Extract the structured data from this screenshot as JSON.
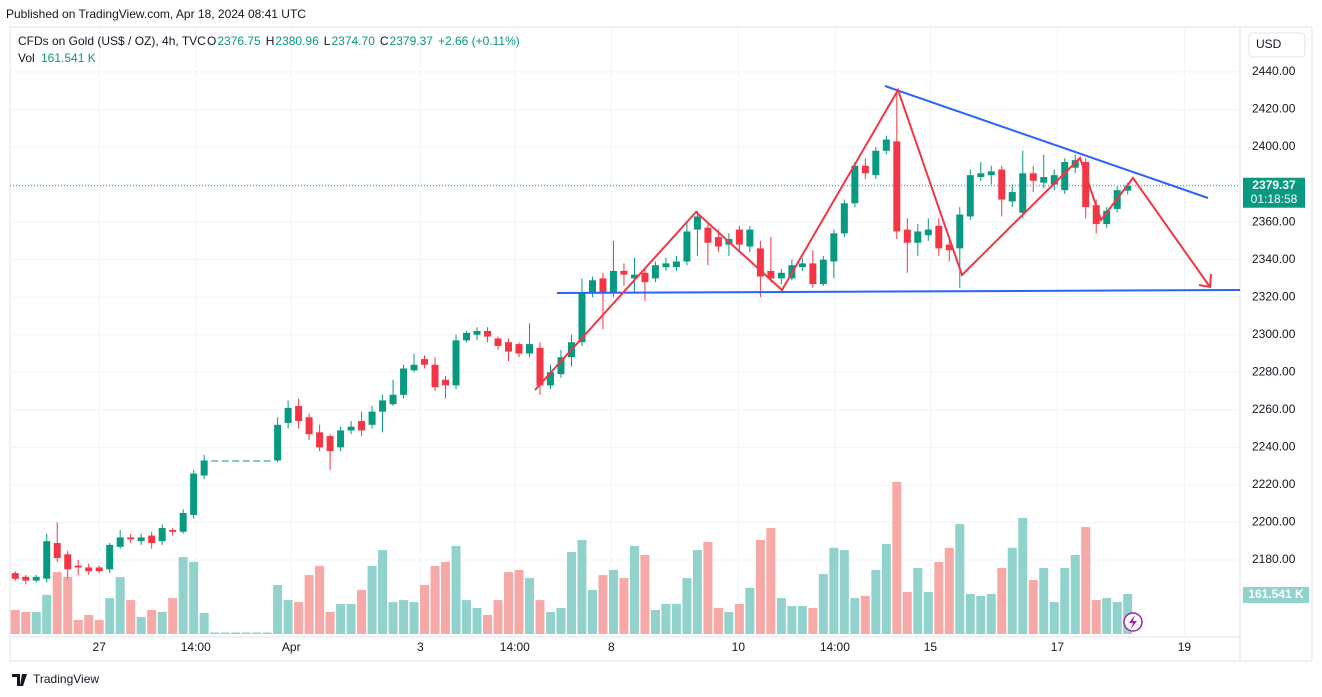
{
  "published": "Published on TradingView.com, Apr 18, 2024 08:41 UTC",
  "footer": "TradingView",
  "chart_data": {
    "type": "candlestick",
    "legend": {
      "title": "CFDs on Gold (US$ / OZ), 4h, TVC",
      "fields": [
        {
          "key": "O",
          "text": "2376.75"
        },
        {
          "key": "H",
          "text": "2380.96"
        },
        {
          "key": "L",
          "text": "2374.70"
        },
        {
          "key": "C",
          "text": "2379.37"
        }
      ],
      "change": "+2.66 (+0.11%)",
      "vol_label": "Vol"
    },
    "currency": "USD",
    "countdown": "01:18:58",
    "up_color": "#089981",
    "down_color": "#f23645",
    "volume_up_color": "#92d2cc",
    "volume_down_color": "#f7a9a7",
    "grid": true,
    "xlim": [
      -0.5,
      116.7
    ],
    "xticks": [
      {
        "value": 8,
        "label": "27"
      },
      {
        "value": 17.2,
        "label": "14:00"
      },
      {
        "value": 26.3,
        "label": "Apr"
      },
      {
        "value": 38.6,
        "label": "3"
      },
      {
        "value": 47.6,
        "label": "14:00"
      },
      {
        "value": 56.8,
        "label": "8"
      },
      {
        "value": 68.9,
        "label": "10"
      },
      {
        "value": 78.1,
        "label": "14:00"
      },
      {
        "value": 87.2,
        "label": "15"
      },
      {
        "value": 99.3,
        "label": "17"
      },
      {
        "value": 111.4,
        "label": "19"
      }
    ],
    "ylim": [
      2126.7,
      2463.4
    ],
    "yticks": [
      {
        "value": 2180,
        "label": "2180.00"
      },
      {
        "value": 2200,
        "label": "2200.00"
      },
      {
        "value": 2220,
        "label": "2220.00"
      },
      {
        "value": 2240,
        "label": "2240.00"
      },
      {
        "value": 2260,
        "label": "2260.00"
      },
      {
        "value": 2280,
        "label": "2280.00"
      },
      {
        "value": 2300,
        "label": "2300.00"
      },
      {
        "value": 2320,
        "label": "2320.00"
      },
      {
        "value": 2340,
        "label": "2340.00"
      },
      {
        "value": 2360,
        "label": "2360.00"
      },
      {
        "value": 2380,
        "label": "2380.00"
      },
      {
        "value": 2400,
        "label": "2400.00"
      },
      {
        "value": 2420,
        "label": "2420.00"
      },
      {
        "value": 2440,
        "label": "2440.00"
      }
    ],
    "open": [
      2173,
      2171,
      2169,
      2170,
      2189,
      2183,
      2177,
      2176,
      2176,
      2175,
      2187,
      2192,
      2190,
      2193,
      2190,
      2196,
      2195,
      2204,
      2225,
      2233,
      2233,
      2233,
      2233,
      2233,
      2233,
      2233,
      2253,
      2262,
      2256,
      2248,
      2246,
      2240,
      2249,
      2254,
      2252,
      2259,
      2263,
      2268,
      2281,
      2287,
      2284,
      2276,
      2273,
      2297,
      2300,
      2302,
      2298,
      2296,
      2295,
      2290,
      2293,
      2273,
      2279,
      2288,
      2296,
      2322,
      2330,
      2322,
      2334,
      2330,
      2333,
      2330,
      2336,
      2336,
      2339,
      2356,
      2357,
      2352,
      2348,
      2356,
      2347,
      2346,
      2334,
      2330,
      2330,
      2336,
      2338,
      2327,
      2339,
      2354,
      2370,
      2390,
      2385,
      2398,
      2403,
      2356,
      2349,
      2353,
      2358,
      2348,
      2346,
      2363,
      2384,
      2385,
      2388,
      2371,
      2365,
      2386,
      2381,
      2380,
      2377,
      2389,
      2392,
      2369,
      2359,
      2367,
      2376.75
    ],
    "high": [
      2174,
      2172,
      2172,
      2194,
      2200,
      2185,
      2180,
      2178,
      2177,
      2189,
      2196,
      2194,
      2194,
      2195,
      2199,
      2197,
      2207,
      2228,
      2236,
      2233,
      2233,
      2233,
      2233,
      2233,
      2233,
      2256,
      2265,
      2266,
      2258,
      2252,
      2247,
      2251,
      2254,
      2259,
      2262,
      2268,
      2276,
      2284,
      2290,
      2289,
      2288,
      2278,
      2300,
      2302,
      2304,
      2304,
      2299,
      2298,
      2296,
      2306,
      2296,
      2284,
      2292,
      2300,
      2330,
      2331,
      2333,
      2350,
      2338,
      2341,
      2336,
      2339,
      2341,
      2342,
      2360,
      2366,
      2359,
      2356,
      2354,
      2358,
      2358,
      2350,
      2352,
      2335,
      2340,
      2341,
      2345,
      2342,
      2356,
      2372,
      2392,
      2394,
      2400,
      2406,
      2431,
      2362,
      2359,
      2362,
      2362,
      2352,
      2368,
      2388,
      2392,
      2390,
      2390,
      2380,
      2398,
      2390,
      2396,
      2388,
      2394,
      2396,
      2394,
      2372,
      2368,
      2379,
      2380.96
    ],
    "low": [
      2169,
      2167,
      2168,
      2168,
      2179,
      2170,
      2172,
      2172,
      2173,
      2173,
      2186,
      2189,
      2188,
      2186,
      2188,
      2193,
      2194,
      2202,
      2223,
      2233,
      2233,
      2233,
      2233,
      2233,
      2233,
      2232,
      2250,
      2250,
      2244,
      2238,
      2228,
      2238,
      2247,
      2246,
      2250,
      2248,
      2262,
      2266,
      2280,
      2282,
      2270,
      2266,
      2271,
      2296,
      2297,
      2296,
      2292,
      2286,
      2288,
      2288,
      2268,
      2271,
      2277,
      2283,
      2294,
      2320,
      2303,
      2320,
      2326,
      2322,
      2318,
      2328,
      2334,
      2334,
      2337,
      2342,
      2337,
      2344,
      2342,
      2345,
      2344,
      2320,
      2328,
      2327,
      2329,
      2334,
      2325,
      2326,
      2330,
      2352,
      2368,
      2383,
      2383,
      2396,
      2351,
      2333,
      2342,
      2350,
      2342,
      2339,
      2325,
      2361,
      2382,
      2380,
      2363,
      2368,
      2362,
      2376,
      2378,
      2377,
      2375,
      2386,
      2362,
      2354,
      2357,
      2365,
      2374.7
    ],
    "close": [
      2170,
      2169,
      2171,
      2190,
      2181,
      2175,
      2176,
      2174,
      2174,
      2188,
      2192,
      2191,
      2192,
      2189,
      2197,
      2195,
      2205,
      2226,
      2233,
      2233,
      2233,
      2233,
      2233,
      2233,
      2233,
      2252,
      2261,
      2254,
      2247,
      2240,
      2238,
      2249,
      2251,
      2249,
      2259,
      2265,
      2268,
      2282,
      2284,
      2284,
      2272,
      2273,
      2297,
      2301,
      2302,
      2299,
      2294,
      2291,
      2290,
      2295,
      2273,
      2280,
      2288,
      2296,
      2322,
      2329,
      2322,
      2334,
      2332,
      2332,
      2328,
      2337,
      2338,
      2339,
      2355,
      2363,
      2349,
      2347,
      2351,
      2348,
      2356,
      2331,
      2330,
      2333,
      2337,
      2338,
      2327,
      2340,
      2354,
      2370,
      2390,
      2386,
      2398,
      2404,
      2355,
      2349,
      2355,
      2356,
      2346,
      2345,
      2364,
      2385,
      2386,
      2387,
      2372,
      2376,
      2386,
      2382,
      2384,
      2385,
      2392,
      2393,
      2368,
      2359,
      2366,
      2377,
      2379.37
    ],
    "volume": {
      "values": [
        97,
        89,
        89,
        158,
        250,
        230,
        57,
        77,
        57,
        145,
        230,
        137,
        69,
        97,
        89,
        145,
        311,
        291,
        85,
        6,
        6,
        6,
        6,
        6,
        6,
        198,
        137,
        129,
        238,
        275,
        89,
        121,
        121,
        178,
        275,
        339,
        129,
        137,
        129,
        198,
        275,
        291,
        356,
        137,
        105,
        77,
        137,
        250,
        259,
        226,
        137,
        89,
        105,
        331,
        380,
        178,
        238,
        259,
        226,
        356,
        319,
        97,
        121,
        121,
        226,
        339,
        372,
        105,
        89,
        121,
        186,
        380,
        428,
        145,
        113,
        113,
        105,
        242,
        348,
        339,
        145,
        154,
        259,
        364,
        614,
        170,
        267,
        170,
        291,
        348,
        444,
        162,
        154,
        162,
        267,
        348,
        469,
        218,
        267,
        129,
        267,
        319,
        432,
        137,
        145,
        129,
        161.541
      ],
      "last_label": "161.541 K"
    }
  }
}
